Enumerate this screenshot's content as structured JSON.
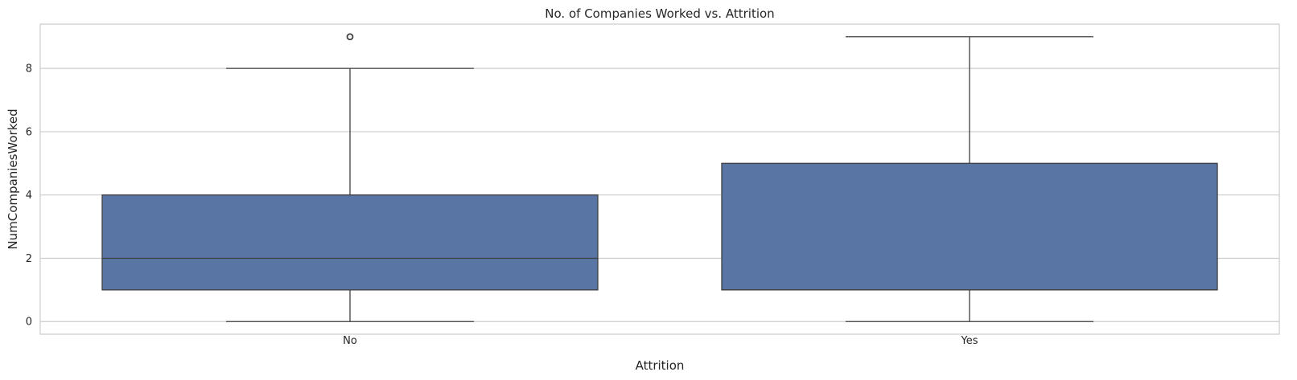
{
  "chart_data": {
    "type": "box",
    "title": "No. of Companies Worked vs. Attrition",
    "xlabel": "Attrition",
    "ylabel": "NumCompaniesWorked",
    "categories": [
      "No",
      "Yes"
    ],
    "boxes": [
      {
        "category": "No",
        "whisker_low": 0,
        "q1": 1,
        "median": 2,
        "q3": 4,
        "whisker_high": 8,
        "outliers": [
          9
        ]
      },
      {
        "category": "Yes",
        "whisker_low": 0,
        "q1": 1,
        "median": 1,
        "q3": 5,
        "whisker_high": 9,
        "outliers": []
      }
    ],
    "ylim": [
      -0.4,
      9.4
    ],
    "yticks": [
      0,
      2,
      4,
      6,
      8
    ],
    "grid": true,
    "colors": {
      "box_fill": "#5875a4",
      "line": "#3f3f3f",
      "grid": "#cccccc",
      "frame": "#cccccc"
    }
  }
}
